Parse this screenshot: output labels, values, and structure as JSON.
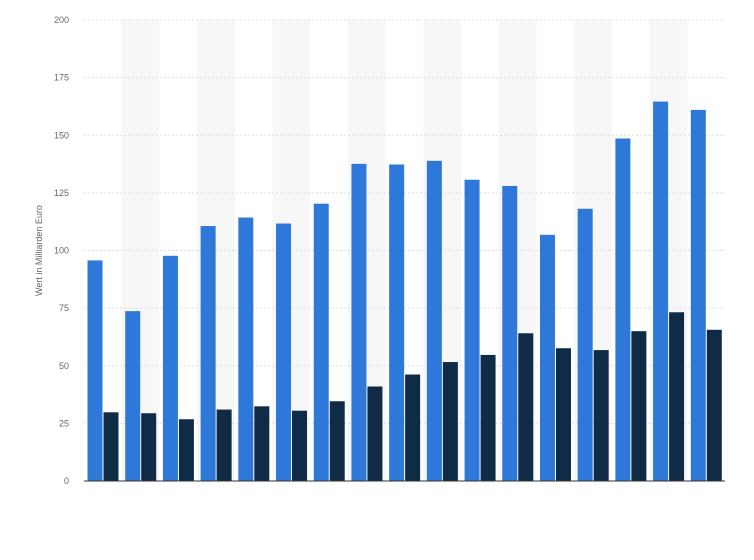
{
  "colors": {
    "series_1": "#2e78d9",
    "series_2": "#0f2b46",
    "band": "#f7f7f7",
    "grid": "#dddddd",
    "axis": "#333333",
    "text": "#666666"
  },
  "chart_data": {
    "type": "bar",
    "title": "",
    "xlabel": "",
    "ylabel": "Wert in Milliarden Euro",
    "ylim": [
      0,
      200
    ],
    "yticks": [
      0,
      25,
      50,
      75,
      100,
      125,
      150,
      175,
      200
    ],
    "grid": true,
    "legend": "none",
    "categories": [
      "",
      "",
      "",
      "",
      "",
      "",
      "",
      "",
      "",
      "",
      "",
      "",
      "",
      "",
      "",
      "",
      ""
    ],
    "series": [
      {
        "values": [
          95.7,
          73.7,
          97.7,
          110.6,
          114.3,
          111.7,
          120.3,
          137.6,
          137.3,
          138.9,
          130.7,
          128.0,
          106.8,
          118.1,
          148.6,
          164.6,
          161.0
        ]
      },
      {
        "values": [
          29.8,
          29.4,
          26.8,
          31.0,
          32.4,
          30.5,
          34.6,
          41.0,
          46.2,
          51.6,
          54.7,
          64.1,
          57.6,
          56.8,
          65.0,
          73.2,
          65.6
        ]
      }
    ]
  }
}
